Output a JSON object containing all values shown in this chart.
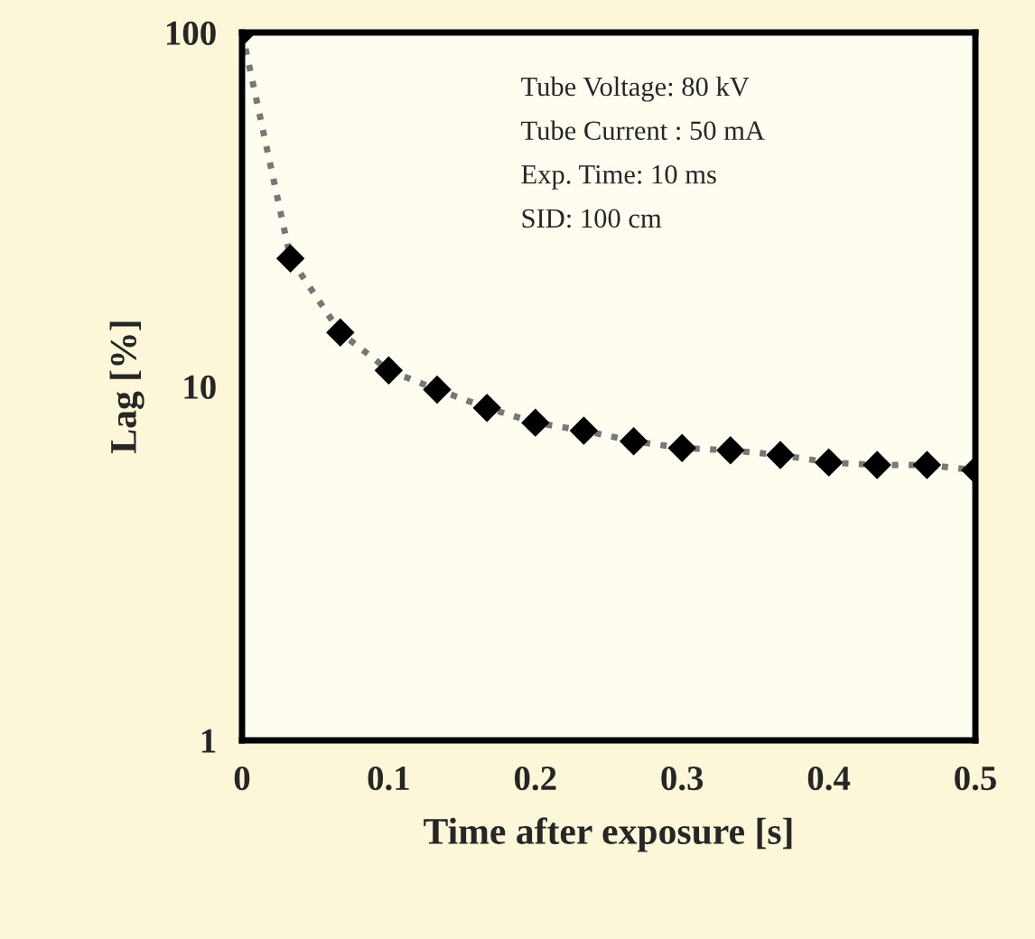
{
  "chart_data": {
    "type": "line",
    "xlabel": "Time after exposure [s]",
    "ylabel": "Lag [%]",
    "x": [
      0,
      0.033,
      0.067,
      0.1,
      0.133,
      0.167,
      0.2,
      0.233,
      0.267,
      0.3,
      0.333,
      0.367,
      0.4,
      0.433,
      0.467,
      0.5
    ],
    "series": [
      {
        "color": "#000000",
        "values": [
          100,
          23,
          14.2,
          11.1,
          9.8,
          8.7,
          7.9,
          7.5,
          7.0,
          6.7,
          6.6,
          6.4,
          6.1,
          6.0,
          6.0,
          5.8
        ]
      }
    ],
    "xlim": [
      0,
      0.5
    ],
    "xticks": [
      0,
      0.1,
      0.2,
      0.3,
      0.4,
      0.5
    ],
    "ylim": [
      1,
      100
    ],
    "yticks": [
      1,
      10,
      100
    ],
    "log": "y",
    "grid": false,
    "legend": false,
    "marker": "diamond",
    "line_style": "dotted",
    "annotations": [
      "Tube Voltage: 80 kV",
      "Tube Current : 50 mA",
      "Exp. Time: 10 ms",
      "SID: 100 cm"
    ]
  }
}
